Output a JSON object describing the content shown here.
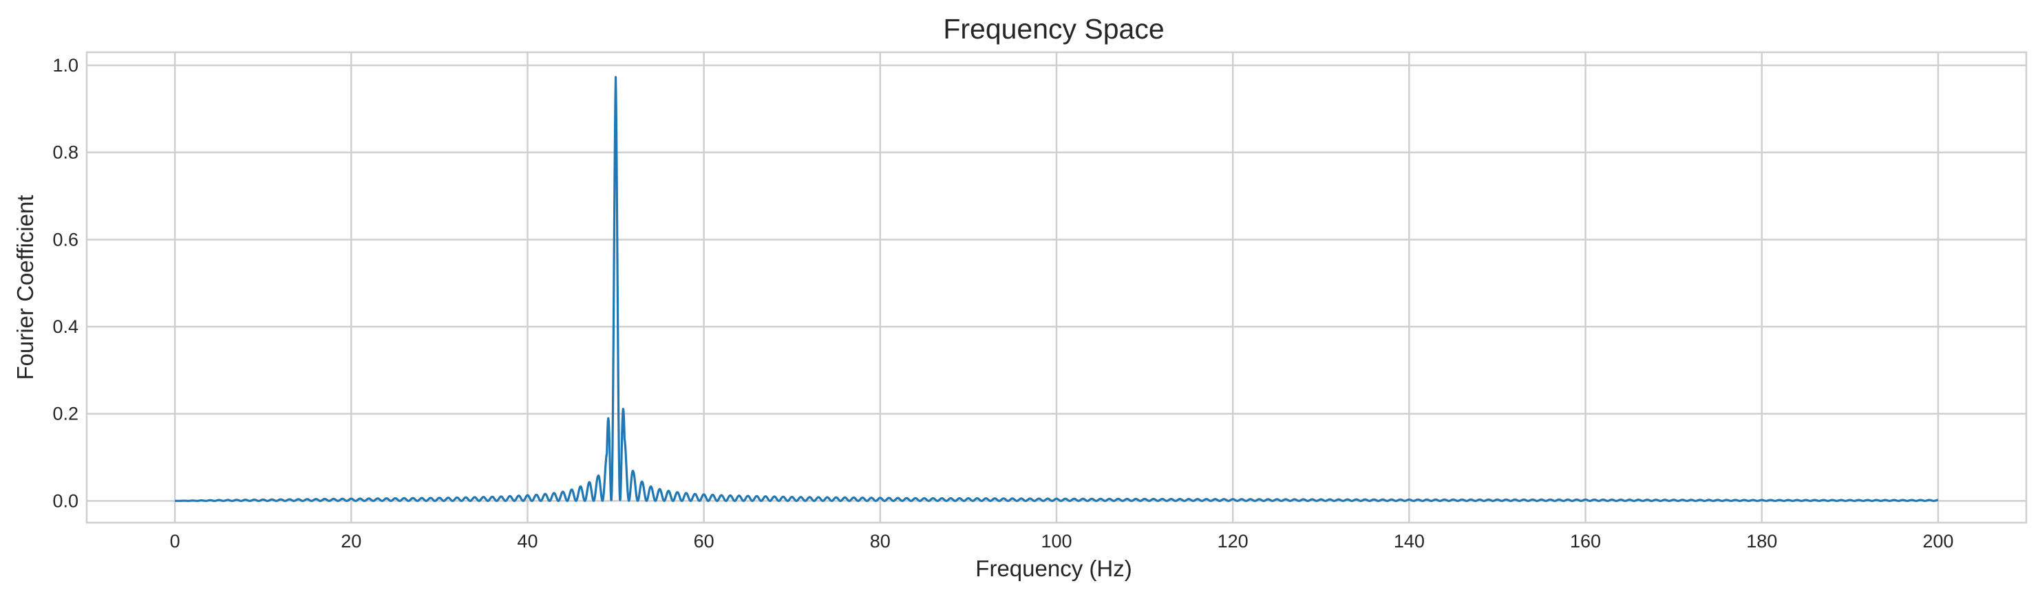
{
  "chart_data": {
    "type": "line",
    "title": "Frequency Space",
    "xlabel": "Frequency (Hz)",
    "ylabel": "Fourier Coefficient",
    "xlim": [
      -10,
      210
    ],
    "ylim": [
      -0.05,
      1.03
    ],
    "xticks": [
      0,
      20,
      40,
      60,
      80,
      100,
      120,
      140,
      160,
      180,
      200
    ],
    "yticks": [
      0.0,
      0.2,
      0.4,
      0.6,
      0.8,
      1.0
    ],
    "xtick_labels": [
      "0",
      "20",
      "40",
      "60",
      "80",
      "100",
      "120",
      "140",
      "160",
      "180",
      "200"
    ],
    "ytick_labels": [
      "0.0",
      "0.2",
      "0.4",
      "0.6",
      "0.8",
      "1.0"
    ],
    "grid": true,
    "legend": false,
    "colors": {
      "series": "#1f77b4"
    },
    "series": [
      {
        "color": "#1f77b4",
        "x": [
          0,
          5,
          10,
          15,
          20,
          25,
          30,
          33,
          35,
          37,
          39,
          40,
          41,
          42,
          43,
          44,
          45,
          46,
          47,
          48,
          49,
          50,
          51,
          52,
          53,
          54,
          55,
          56,
          57,
          58,
          59,
          60,
          62,
          64,
          66,
          68,
          70,
          75,
          80,
          85,
          90,
          100,
          120,
          140,
          160,
          180,
          200
        ],
        "y": [
          0.0,
          0.002,
          0.003,
          0.004,
          0.005,
          0.006,
          0.007,
          0.008,
          0.009,
          0.01,
          0.012,
          0.013,
          0.014,
          0.016,
          0.018,
          0.021,
          0.026,
          0.033,
          0.043,
          0.057,
          0.109,
          0.973,
          0.142,
          0.067,
          0.044,
          0.033,
          0.027,
          0.023,
          0.02,
          0.018,
          0.016,
          0.015,
          0.013,
          0.012,
          0.011,
          0.01,
          0.009,
          0.008,
          0.007,
          0.006,
          0.006,
          0.005,
          0.004,
          0.003,
          0.003,
          0.002,
          0.002
        ]
      }
    ]
  }
}
